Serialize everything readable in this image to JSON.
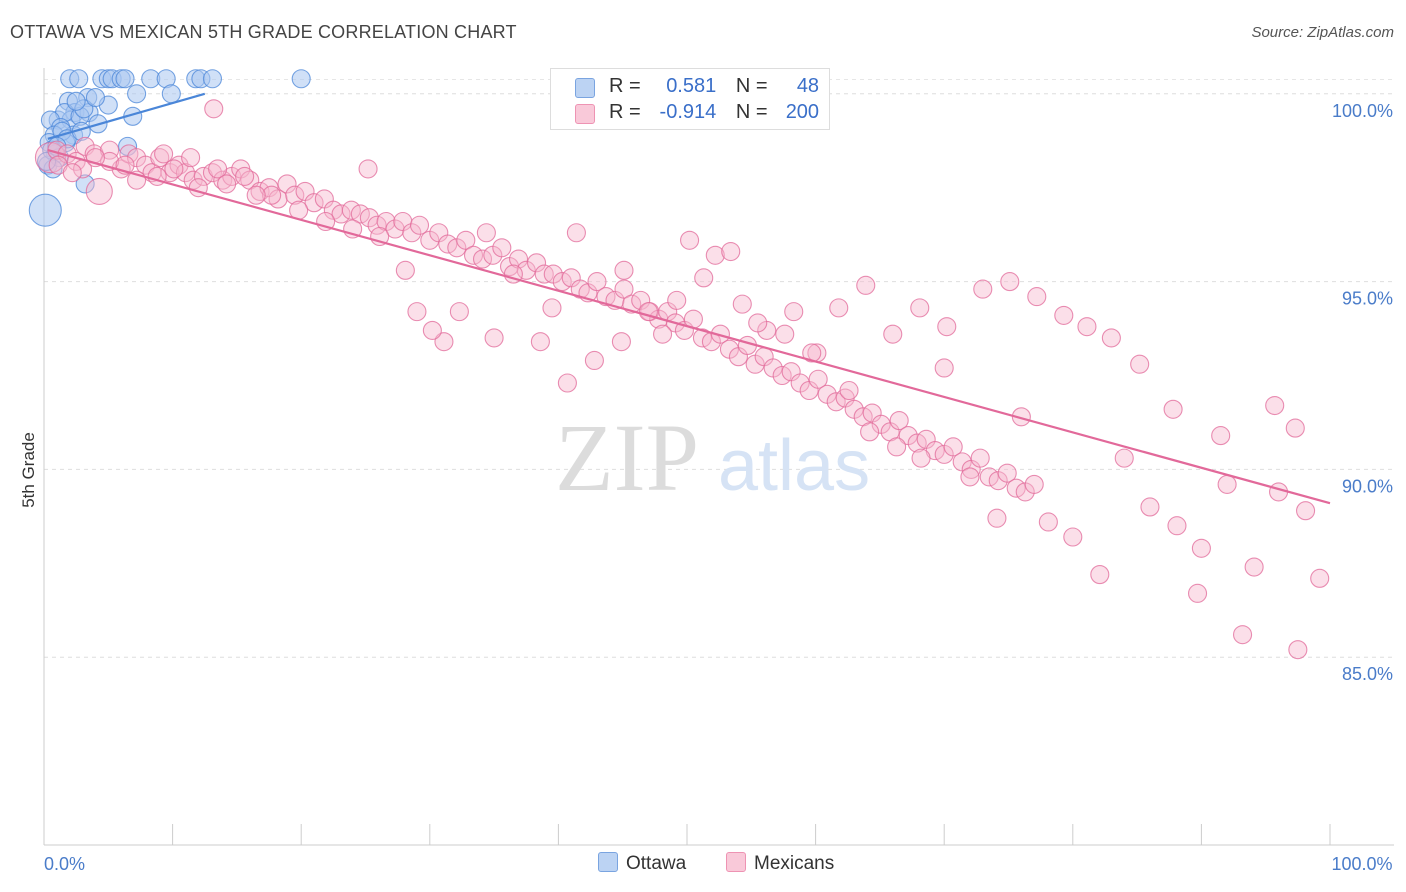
{
  "title": "OTTAWA VS MEXICAN 5TH GRADE CORRELATION CHART",
  "source": "Source: ZipAtlas.com",
  "watermark": {
    "zip": "ZIP",
    "atlas": "atlas"
  },
  "legend": {
    "rows": [
      {
        "r_label": "R =",
        "r_value": "0.581",
        "n_label": "N =",
        "n_value": "48",
        "color": "#8fb4ea"
      },
      {
        "r_label": "R =",
        "r_value": "-0.914",
        "n_label": "N =",
        "n_value": "200",
        "color": "#f4a6c0"
      }
    ]
  },
  "bottom_legend": [
    {
      "label": "Ottawa",
      "color": "#8fb4ea"
    },
    {
      "label": "Mexicans",
      "color": "#f4a6c0"
    }
  ],
  "chart_data": {
    "type": "scatter",
    "title": "OTTAWA VS MEXICAN 5TH GRADE CORRELATION CHART",
    "xlabel": "",
    "ylabel": "5th Grade",
    "xlim": [
      0,
      100
    ],
    "ylim": [
      80.0,
      100.5
    ],
    "x_tick_labels": [
      {
        "value": 0,
        "label": "0.0%"
      },
      {
        "value": 100,
        "label": "100.0%"
      }
    ],
    "y_tick_labels": [
      {
        "value": 100,
        "label": "100.0%"
      },
      {
        "value": 95,
        "label": "95.0%"
      },
      {
        "value": 90,
        "label": "90.0%"
      },
      {
        "value": 85,
        "label": "85.0%"
      }
    ],
    "grid": true,
    "series": [
      {
        "name": "Ottawa",
        "color": "#4a86d8",
        "fill": "#a9c7f0",
        "trend": {
          "x0": 0.3,
          "y0": 98.8,
          "x1": 12.5,
          "y1": 100.0
        },
        "points": [
          [
            2.0,
            100.4
          ],
          [
            2.7,
            100.4
          ],
          [
            4.5,
            100.4
          ],
          [
            5.0,
            100.4
          ],
          [
            5.3,
            100.4
          ],
          [
            6.0,
            100.4
          ],
          [
            6.3,
            100.4
          ],
          [
            8.3,
            100.4
          ],
          [
            9.5,
            100.4
          ],
          [
            11.8,
            100.4
          ],
          [
            12.2,
            100.4
          ],
          [
            13.1,
            100.4
          ],
          [
            20.0,
            100.4
          ],
          [
            7.2,
            100.0
          ],
          [
            9.9,
            100.0
          ],
          [
            1.9,
            99.8
          ],
          [
            3.4,
            99.9
          ],
          [
            2.4,
            99.5
          ],
          [
            3.5,
            99.5
          ],
          [
            5.0,
            99.7
          ],
          [
            1.1,
            99.3
          ],
          [
            2.1,
            99.3
          ],
          [
            1.6,
            99.5
          ],
          [
            6.9,
            99.4
          ],
          [
            4.2,
            99.2
          ],
          [
            0.5,
            99.3
          ],
          [
            1.3,
            99.1
          ],
          [
            2.3,
            98.9
          ],
          [
            0.8,
            98.9
          ],
          [
            1.7,
            98.7
          ],
          [
            0.4,
            98.7
          ],
          [
            0.9,
            98.4
          ],
          [
            6.5,
            98.6
          ],
          [
            1.4,
            99.0
          ],
          [
            2.8,
            99.4
          ],
          [
            0.3,
            98.1
          ],
          [
            0.6,
            98.5
          ],
          [
            1.8,
            98.8
          ],
          [
            3.1,
            99.6
          ],
          [
            2.5,
            99.8
          ],
          [
            3.2,
            97.6
          ],
          [
            0.1,
            96.9
          ],
          [
            1.2,
            98.3
          ],
          [
            0.7,
            98.0
          ],
          [
            4.0,
            99.9
          ],
          [
            2.9,
            99.0
          ],
          [
            1.0,
            98.6
          ],
          [
            0.2,
            98.2
          ]
        ]
      },
      {
        "name": "Mexicans",
        "color": "#e2699a",
        "fill": "#f7b9cf",
        "trend": {
          "x0": 0.3,
          "y0": 98.5,
          "x1": 100.0,
          "y1": 89.1
        },
        "points": [
          [
            0.5,
            98.3
          ],
          [
            1.0,
            98.5
          ],
          [
            1.8,
            98.4
          ],
          [
            2.5,
            98.2
          ],
          [
            3.2,
            98.6
          ],
          [
            3.9,
            98.4
          ],
          [
            4.3,
            97.4
          ],
          [
            5.1,
            98.5
          ],
          [
            6.0,
            98.0
          ],
          [
            6.6,
            98.4
          ],
          [
            7.2,
            98.3
          ],
          [
            7.9,
            98.1
          ],
          [
            8.4,
            97.9
          ],
          [
            9.0,
            98.3
          ],
          [
            9.8,
            97.9
          ],
          [
            10.5,
            98.1
          ],
          [
            11.0,
            97.9
          ],
          [
            11.6,
            97.7
          ],
          [
            12.4,
            97.8
          ],
          [
            13.1,
            97.9
          ],
          [
            13.9,
            97.7
          ],
          [
            14.6,
            97.8
          ],
          [
            15.3,
            98.0
          ],
          [
            16.0,
            97.7
          ],
          [
            16.8,
            97.4
          ],
          [
            17.5,
            97.5
          ],
          [
            18.2,
            97.2
          ],
          [
            18.9,
            97.6
          ],
          [
            19.5,
            97.3
          ],
          [
            20.3,
            97.4
          ],
          [
            21.0,
            97.1
          ],
          [
            21.8,
            97.2
          ],
          [
            22.5,
            96.9
          ],
          [
            23.1,
            96.8
          ],
          [
            23.9,
            96.9
          ],
          [
            24.6,
            96.8
          ],
          [
            25.3,
            96.7
          ],
          [
            25.9,
            96.5
          ],
          [
            26.6,
            96.6
          ],
          [
            27.3,
            96.4
          ],
          [
            27.9,
            96.6
          ],
          [
            28.6,
            96.3
          ],
          [
            29.2,
            96.5
          ],
          [
            30.0,
            96.1
          ],
          [
            30.7,
            96.3
          ],
          [
            31.4,
            96.0
          ],
          [
            32.1,
            95.9
          ],
          [
            32.8,
            96.1
          ],
          [
            33.4,
            95.7
          ],
          [
            34.1,
            95.6
          ],
          [
            34.9,
            95.7
          ],
          [
            35.6,
            95.9
          ],
          [
            36.2,
            95.4
          ],
          [
            36.9,
            95.6
          ],
          [
            37.5,
            95.3
          ],
          [
            38.3,
            95.5
          ],
          [
            38.9,
            95.2
          ],
          [
            39.6,
            95.2
          ],
          [
            40.3,
            95.0
          ],
          [
            41.0,
            95.1
          ],
          [
            41.7,
            94.8
          ],
          [
            42.3,
            94.7
          ],
          [
            43.0,
            95.0
          ],
          [
            43.7,
            94.6
          ],
          [
            44.4,
            94.5
          ],
          [
            45.1,
            94.8
          ],
          [
            45.7,
            94.4
          ],
          [
            46.4,
            94.5
          ],
          [
            47.1,
            94.2
          ],
          [
            47.8,
            94.0
          ],
          [
            48.5,
            94.2
          ],
          [
            49.1,
            93.9
          ],
          [
            49.8,
            93.7
          ],
          [
            50.5,
            94.0
          ],
          [
            51.2,
            93.5
          ],
          [
            51.9,
            93.4
          ],
          [
            52.6,
            93.6
          ],
          [
            53.3,
            93.2
          ],
          [
            54.0,
            93.0
          ],
          [
            54.7,
            93.3
          ],
          [
            55.3,
            92.8
          ],
          [
            56.0,
            93.0
          ],
          [
            56.7,
            92.7
          ],
          [
            57.4,
            92.5
          ],
          [
            58.1,
            92.6
          ],
          [
            58.8,
            92.3
          ],
          [
            59.5,
            92.1
          ],
          [
            60.2,
            92.4
          ],
          [
            60.9,
            92.0
          ],
          [
            61.6,
            91.8
          ],
          [
            62.3,
            91.9
          ],
          [
            63.0,
            91.6
          ],
          [
            63.7,
            91.4
          ],
          [
            64.4,
            91.5
          ],
          [
            65.1,
            91.2
          ],
          [
            65.8,
            91.0
          ],
          [
            66.5,
            91.3
          ],
          [
            67.2,
            90.9
          ],
          [
            67.9,
            90.7
          ],
          [
            68.6,
            90.8
          ],
          [
            69.3,
            90.5
          ],
          [
            70.0,
            90.4
          ],
          [
            70.7,
            90.6
          ],
          [
            71.4,
            90.2
          ],
          [
            72.1,
            90.0
          ],
          [
            72.8,
            90.3
          ],
          [
            73.5,
            89.8
          ],
          [
            74.2,
            89.7
          ],
          [
            74.9,
            89.9
          ],
          [
            75.6,
            89.5
          ],
          [
            76.3,
            89.4
          ],
          [
            77.0,
            89.6
          ],
          [
            13.2,
            99.6
          ],
          [
            25.2,
            98.0
          ],
          [
            29.0,
            94.2
          ],
          [
            31.1,
            93.4
          ],
          [
            35.0,
            93.5
          ],
          [
            39.5,
            94.3
          ],
          [
            41.4,
            96.3
          ],
          [
            45.1,
            95.3
          ],
          [
            48.1,
            93.6
          ],
          [
            50.2,
            96.1
          ],
          [
            52.2,
            95.7
          ],
          [
            54.3,
            94.4
          ],
          [
            56.2,
            93.7
          ],
          [
            58.3,
            94.2
          ],
          [
            60.1,
            93.1
          ],
          [
            62.6,
            92.1
          ],
          [
            64.2,
            91.0
          ],
          [
            66.3,
            90.6
          ],
          [
            68.2,
            90.3
          ],
          [
            70.0,
            92.7
          ],
          [
            72.0,
            89.8
          ],
          [
            74.1,
            88.7
          ],
          [
            76.0,
            91.4
          ],
          [
            78.1,
            88.6
          ],
          [
            80.0,
            88.2
          ],
          [
            82.1,
            87.2
          ],
          [
            84.0,
            90.3
          ],
          [
            86.0,
            89.0
          ],
          [
            88.1,
            88.5
          ],
          [
            90.0,
            87.9
          ],
          [
            92.0,
            89.6
          ],
          [
            94.1,
            87.4
          ],
          [
            96.0,
            89.4
          ],
          [
            98.1,
            88.9
          ],
          [
            99.2,
            87.1
          ],
          [
            97.5,
            85.2
          ],
          [
            93.2,
            85.6
          ],
          [
            89.7,
            86.7
          ],
          [
            95.7,
            91.7
          ],
          [
            97.3,
            91.1
          ],
          [
            91.5,
            90.9
          ],
          [
            87.8,
            91.6
          ],
          [
            85.2,
            92.8
          ],
          [
            83.0,
            93.5
          ],
          [
            81.1,
            93.8
          ],
          [
            79.3,
            94.1
          ],
          [
            77.2,
            94.6
          ],
          [
            75.1,
            95.0
          ],
          [
            73.0,
            94.8
          ],
          [
            70.2,
            93.8
          ],
          [
            68.1,
            94.3
          ],
          [
            66.0,
            93.6
          ],
          [
            63.9,
            94.9
          ],
          [
            61.8,
            94.3
          ],
          [
            59.7,
            93.1
          ],
          [
            57.6,
            93.6
          ],
          [
            55.5,
            93.9
          ],
          [
            53.4,
            95.8
          ],
          [
            51.3,
            95.1
          ],
          [
            49.2,
            94.5
          ],
          [
            47.0,
            94.2
          ],
          [
            44.9,
            93.4
          ],
          [
            42.8,
            92.9
          ],
          [
            40.7,
            92.3
          ],
          [
            38.6,
            93.4
          ],
          [
            36.5,
            95.2
          ],
          [
            34.4,
            96.3
          ],
          [
            32.3,
            94.2
          ],
          [
            30.2,
            93.7
          ],
          [
            28.1,
            95.3
          ],
          [
            26.1,
            96.2
          ],
          [
            24.0,
            96.4
          ],
          [
            21.9,
            96.6
          ],
          [
            19.8,
            96.9
          ],
          [
            17.7,
            97.3
          ],
          [
            15.6,
            97.8
          ],
          [
            13.5,
            98.0
          ],
          [
            11.4,
            98.3
          ],
          [
            9.3,
            98.4
          ],
          [
            7.2,
            97.7
          ],
          [
            5.1,
            98.2
          ],
          [
            3.0,
            98.0
          ],
          [
            1.1,
            98.1
          ],
          [
            2.2,
            97.9
          ],
          [
            4.0,
            98.3
          ],
          [
            6.3,
            98.1
          ],
          [
            8.8,
            97.8
          ],
          [
            10.1,
            98.0
          ],
          [
            12.0,
            97.5
          ],
          [
            14.2,
            97.6
          ],
          [
            16.5,
            97.3
          ]
        ]
      }
    ]
  }
}
